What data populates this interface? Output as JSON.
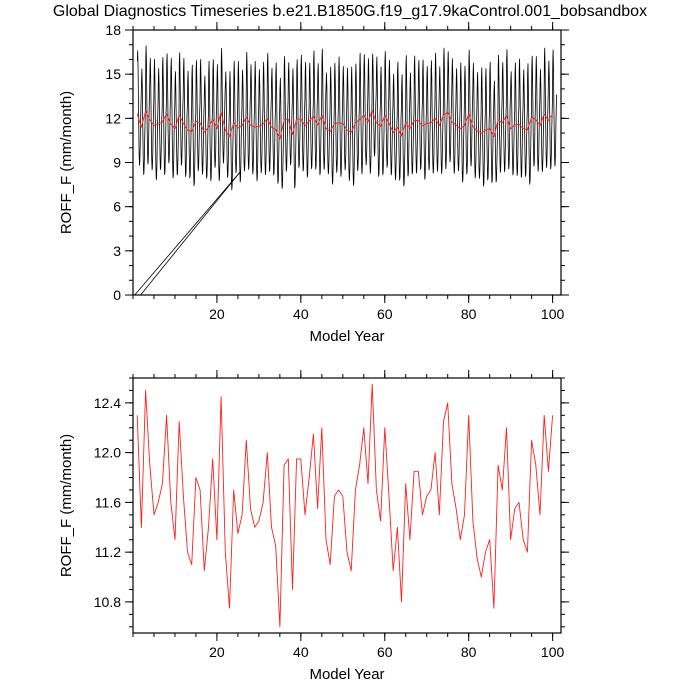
{
  "title": "Global Diagnostics Timeseries b.e21.B1850G.f19_g17.9kaControl.001_bobsandbox",
  "colors": {
    "monthly_line": "#000000",
    "annual_line": "#ff2020",
    "axis": "#000000"
  },
  "chart_data": [
    {
      "type": "line",
      "name": "monthly-timeseries-panel",
      "xlabel": "Model Year",
      "ylabel": "ROFF_F (mm/month)",
      "xlim": [
        0,
        102
      ],
      "ylim": [
        0,
        18
      ],
      "xticks": [
        20,
        40,
        60,
        80,
        100
      ],
      "xminor": 5,
      "yticks": [
        0,
        3,
        6,
        9,
        12,
        15,
        18
      ],
      "yminor": 1,
      "ydec": 0,
      "grid": false,
      "legend": "none",
      "series": [
        {
          "name": "monthly ROFF_F",
          "color": "#000000",
          "width": 0.8,
          "compose": "monthly"
        },
        {
          "name": "annual mean ROFF_F",
          "color": "#ff2020",
          "width": 0.9,
          "compose": "annual"
        },
        {
          "name": "spinup ramp a",
          "color": "#000000",
          "width": 0.8,
          "points": [
            [
              0.4,
              0.0
            ],
            [
              25.5,
              8.35
            ]
          ]
        },
        {
          "name": "spinup ramp b",
          "color": "#000000",
          "width": 0.8,
          "points": [
            [
              1.8,
              0.0
            ],
            [
              25.5,
              8.35
            ]
          ]
        }
      ]
    },
    {
      "type": "line",
      "name": "annual-mean-panel",
      "xlabel": "Model Year",
      "ylabel": "ROFF_F (mm/month)",
      "xlim": [
        0,
        102
      ],
      "ylim": [
        10.55,
        12.6
      ],
      "xticks": [
        20,
        40,
        60,
        80,
        100
      ],
      "xminor": 5,
      "yticks": [
        10.8,
        11.2,
        11.6,
        12.0,
        12.4
      ],
      "yminor": 0.1,
      "ydec": 1,
      "grid": false,
      "legend": "none",
      "series": [
        {
          "name": "annual mean ROFF_F",
          "color": "#ff2020",
          "width": 0.9,
          "compose": "annual"
        }
      ]
    }
  ],
  "annual_means": [
    12.3,
    11.4,
    12.5,
    11.9,
    11.5,
    11.6,
    11.75,
    12.3,
    11.6,
    11.3,
    12.25,
    11.65,
    11.2,
    11.1,
    11.8,
    11.7,
    11.05,
    11.4,
    11.95,
    11.3,
    12.45,
    11.2,
    10.75,
    11.7,
    11.35,
    11.5,
    12.1,
    11.55,
    11.4,
    11.45,
    11.6,
    12.0,
    11.4,
    11.25,
    10.6,
    11.9,
    11.95,
    10.9,
    11.95,
    11.95,
    11.5,
    11.8,
    12.15,
    11.55,
    12.2,
    11.3,
    11.1,
    11.65,
    11.7,
    11.65,
    11.2,
    11.05,
    11.7,
    11.9,
    12.2,
    11.75,
    12.55,
    11.7,
    11.45,
    12.2,
    11.65,
    11.05,
    11.4,
    10.8,
    11.75,
    11.3,
    11.85,
    11.85,
    11.5,
    11.65,
    11.7,
    12.0,
    11.5,
    12.25,
    12.4,
    11.75,
    11.55,
    11.3,
    11.5,
    12.3,
    11.45,
    11.15,
    11.0,
    11.2,
    11.3,
    10.75,
    11.9,
    11.7,
    12.2,
    11.3,
    11.55,
    11.6,
    11.3,
    11.2,
    12.1,
    11.9,
    11.5,
    12.3,
    11.85,
    12.3
  ],
  "seasonal_pattern": [
    3.6,
    4.3,
    3.0,
    1.0,
    -1.1,
    -2.7,
    -3.5,
    -3.3,
    -2.3,
    -0.8,
    0.5,
    1.3
  ],
  "amplitude_factors": [
    1.0,
    0.92,
    1.03,
    0.97,
    1.05,
    0.88,
    1.02,
    0.95,
    1.04,
    0.9,
    0.98,
    1.03,
    0.93,
    1.05,
    0.96,
    1.0,
    0.89,
    1.04,
    0.94,
    1.01
  ]
}
